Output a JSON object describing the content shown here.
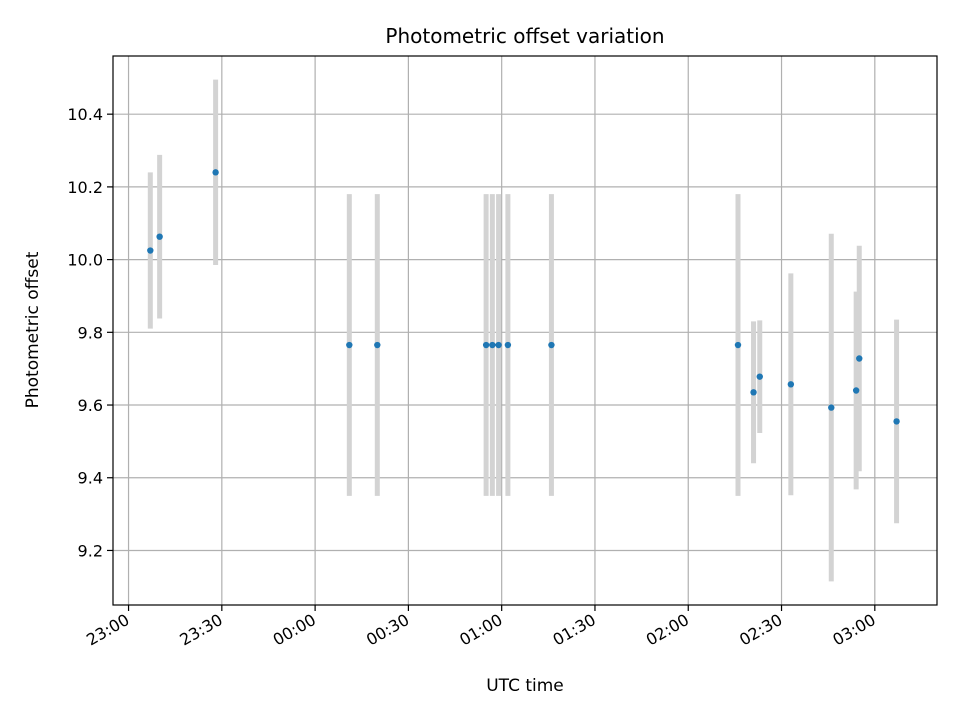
{
  "chart_data": {
    "type": "scatter",
    "title": "Photometric offset variation",
    "xlabel": "UTC time",
    "ylabel": "Photometric offset",
    "x_axis": "time",
    "xlim": [
      "22:55",
      "03:20"
    ],
    "ylim": [
      9.05,
      10.56
    ],
    "x_ticks": [
      "23:00",
      "23:30",
      "00:00",
      "00:30",
      "01:00",
      "01:30",
      "02:00",
      "02:30",
      "03:00"
    ],
    "y_ticks": [
      "9.2",
      "9.4",
      "9.6",
      "9.8",
      "10.0",
      "10.2",
      "10.4"
    ],
    "grid": true,
    "marker_color": "#1f77b4",
    "errorbar_color": "#d3d3d3",
    "points": [
      {
        "time": "23:07",
        "y": 10.025,
        "err": 0.215
      },
      {
        "time": "23:10",
        "y": 10.063,
        "err": 0.225
      },
      {
        "time": "23:28",
        "y": 10.24,
        "err": 0.255
      },
      {
        "time": "00:11",
        "y": 9.765,
        "err": 0.415
      },
      {
        "time": "00:20",
        "y": 9.765,
        "err": 0.415
      },
      {
        "time": "00:55",
        "y": 9.765,
        "err": 0.415
      },
      {
        "time": "00:57",
        "y": 9.765,
        "err": 0.415
      },
      {
        "time": "00:59",
        "y": 9.765,
        "err": 0.415
      },
      {
        "time": "01:02",
        "y": 9.765,
        "err": 0.415
      },
      {
        "time": "01:16",
        "y": 9.765,
        "err": 0.415
      },
      {
        "time": "02:16",
        "y": 9.765,
        "err": 0.415
      },
      {
        "time": "02:21",
        "y": 9.635,
        "err": 0.195
      },
      {
        "time": "02:23",
        "y": 9.678,
        "err": 0.155
      },
      {
        "time": "02:33",
        "y": 9.657,
        "err": 0.305
      },
      {
        "time": "02:46",
        "y": 9.593,
        "err": 0.478
      },
      {
        "time": "02:54",
        "y": 9.64,
        "err": 0.272
      },
      {
        "time": "02:55",
        "y": 9.728,
        "err": 0.31
      },
      {
        "time": "03:07",
        "y": 9.555,
        "err": 0.28
      }
    ]
  }
}
